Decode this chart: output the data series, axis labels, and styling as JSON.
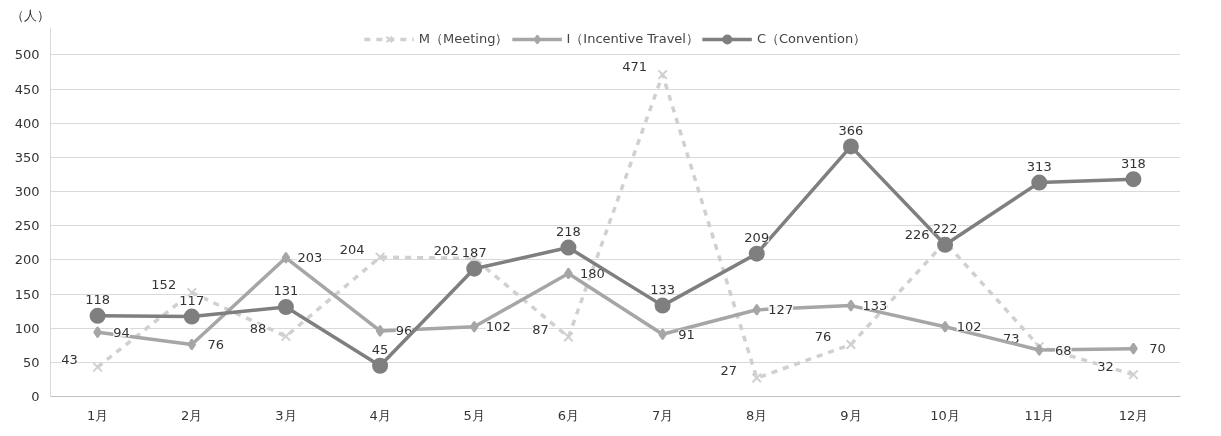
{
  "chart_data": {
    "type": "line",
    "ylabel": "（人）",
    "categories": [
      "1月",
      "2月",
      "3月",
      "4月",
      "5月",
      "6月",
      "7月",
      "8月",
      "9月",
      "10月",
      "11月",
      "12月"
    ],
    "series": [
      {
        "name": "M（Meeting）",
        "color": "#d0d0d0",
        "marker": "cross",
        "line_style": "dashed",
        "values": [
          43,
          152,
          88,
          204,
          202,
          87,
          471,
          27,
          76,
          226,
          73,
          32
        ]
      },
      {
        "name": "I（Incentive Travel）",
        "color": "#a6a6a6",
        "marker": "diamond",
        "line_style": "solid",
        "values": [
          94,
          76,
          203,
          96,
          102,
          180,
          91,
          127,
          133,
          102,
          68,
          70
        ]
      },
      {
        "name": "C（Convention）",
        "color": "#7f7f7f",
        "marker": "circle",
        "line_style": "solid",
        "values": [
          118,
          117,
          131,
          45,
          187,
          218,
          133,
          209,
          366,
          222,
          313,
          318
        ]
      }
    ],
    "ylim": [
      0,
      540
    ],
    "yticks": [
      0,
      50,
      100,
      150,
      200,
      250,
      300,
      350,
      400,
      450,
      500
    ],
    "grid": "y",
    "legend": "top",
    "data_labels": true
  }
}
